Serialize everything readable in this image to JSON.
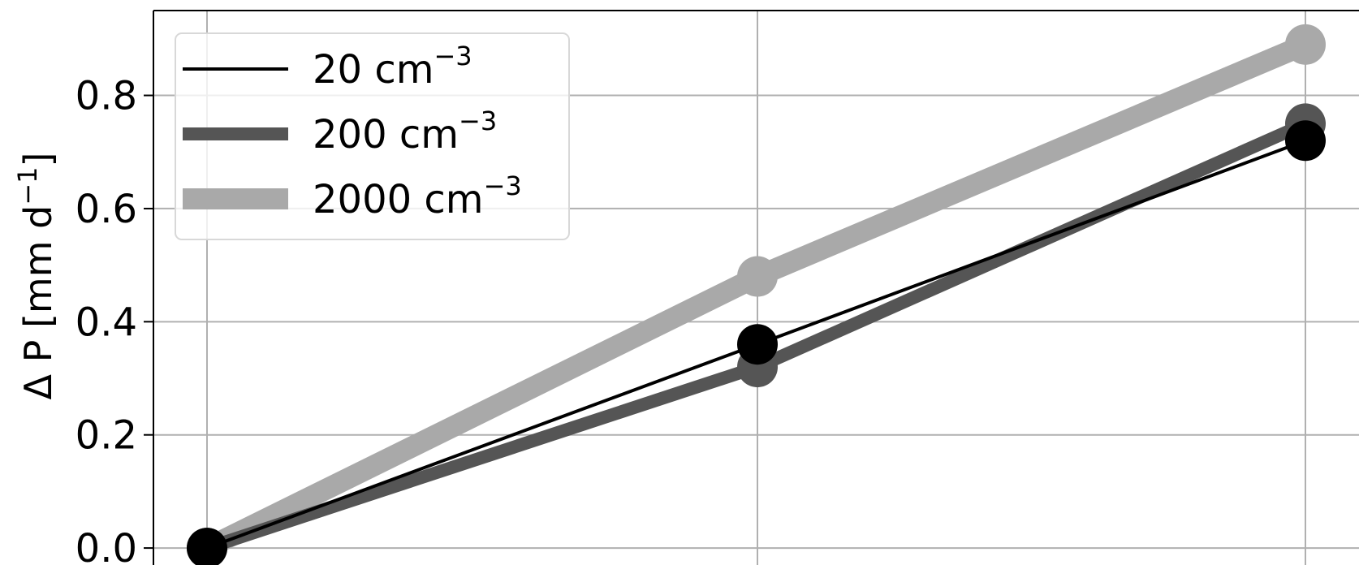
{
  "chart_data": {
    "type": "line",
    "title": "",
    "xlabel": "",
    "ylabel": "Δ P [mm d",
    "ylabel_suffix": "]",
    "ylabel_exponent": "−1",
    "x": [
      0,
      1,
      2
    ],
    "ylim": [
      -0.03,
      0.95
    ],
    "yticks": [
      0.0,
      0.2,
      0.4,
      0.6,
      0.8
    ],
    "ytick_labels": [
      "0.0",
      "0.2",
      "0.4",
      "0.6",
      "0.8"
    ],
    "grid": true,
    "legend_position": "top-left",
    "series": [
      {
        "name": "2000 cm",
        "exponent": "−3",
        "values": [
          0.0,
          0.48,
          0.89
        ],
        "color": "#a9a9a9",
        "line_width": 26
      },
      {
        "name": "200 cm",
        "exponent": "−3",
        "values": [
          0.0,
          0.32,
          0.75
        ],
        "color": "#555555",
        "line_width": 16
      },
      {
        "name": "20 cm",
        "exponent": "−3",
        "values": [
          0.0,
          0.36,
          0.72
        ],
        "color": "#000000",
        "line_width": 4
      }
    ]
  }
}
